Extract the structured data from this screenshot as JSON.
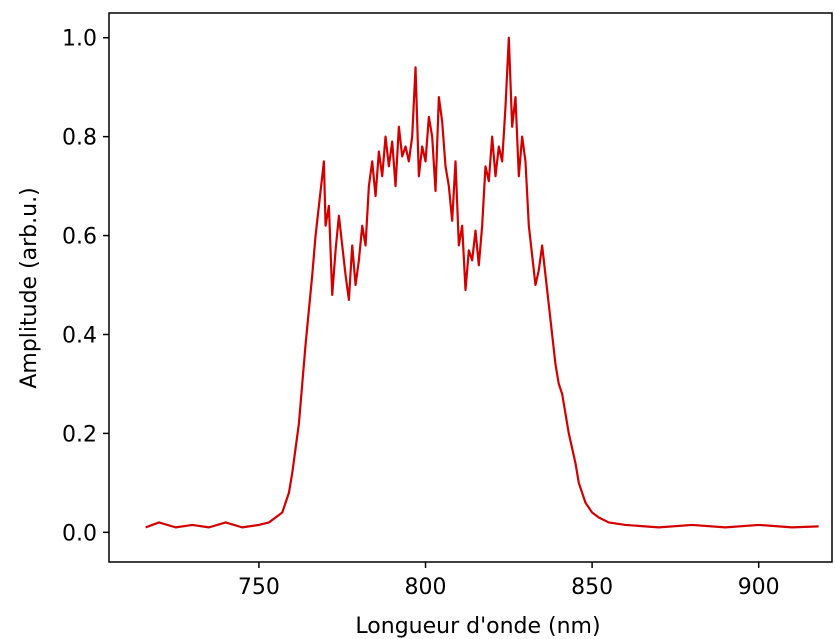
{
  "chart_data": {
    "type": "line",
    "title": "",
    "xlabel": "Longueur d'onde (nm)",
    "ylabel": "Amplitude (arb.u.)",
    "xlim": [
      705,
      922
    ],
    "ylim": [
      -0.06,
      1.05
    ],
    "xticks": [
      750,
      800,
      850,
      900
    ],
    "xtick_labels": [
      "750",
      "800",
      "850",
      "900"
    ],
    "yticks": [
      0.0,
      0.2,
      0.4,
      0.6,
      0.8,
      1.0
    ],
    "ytick_labels": [
      "0.0",
      "0.2",
      "0.4",
      "0.6",
      "0.8",
      "1.0"
    ],
    "grid": false,
    "series": [
      {
        "color": "#d40000",
        "x": [
          716,
          720,
          725,
          730,
          735,
          740,
          745,
          750,
          753,
          755,
          757,
          758,
          759,
          760,
          761,
          762,
          763,
          764,
          765,
          766,
          767,
          768,
          769,
          769.5,
          770,
          771,
          772,
          773,
          774,
          775,
          776,
          777,
          778,
          779,
          780,
          781,
          782,
          783,
          784,
          785,
          786,
          787,
          788,
          789,
          790,
          791,
          792,
          793,
          794,
          795,
          796,
          797,
          798,
          799,
          800,
          801,
          802,
          803,
          804,
          805,
          806,
          807,
          808,
          809,
          810,
          811,
          812,
          813,
          814,
          815,
          816,
          817,
          818,
          819,
          820,
          821,
          822,
          823,
          824,
          825,
          826,
          827,
          828,
          829,
          830,
          831,
          832,
          833,
          834,
          835,
          836,
          837,
          838,
          839,
          840,
          841,
          842,
          843,
          844,
          845,
          846,
          847,
          848,
          850,
          852,
          855,
          860,
          870,
          880,
          890,
          900,
          910,
          918
        ],
        "y": [
          0.01,
          0.02,
          0.01,
          0.015,
          0.01,
          0.02,
          0.01,
          0.015,
          0.02,
          0.03,
          0.04,
          0.06,
          0.08,
          0.12,
          0.17,
          0.22,
          0.3,
          0.38,
          0.45,
          0.52,
          0.6,
          0.66,
          0.72,
          0.75,
          0.62,
          0.66,
          0.48,
          0.57,
          0.64,
          0.58,
          0.52,
          0.47,
          0.58,
          0.5,
          0.55,
          0.62,
          0.58,
          0.7,
          0.75,
          0.68,
          0.77,
          0.72,
          0.8,
          0.74,
          0.79,
          0.7,
          0.82,
          0.76,
          0.78,
          0.75,
          0.8,
          0.94,
          0.72,
          0.78,
          0.75,
          0.84,
          0.8,
          0.69,
          0.88,
          0.83,
          0.74,
          0.7,
          0.63,
          0.75,
          0.58,
          0.62,
          0.49,
          0.57,
          0.55,
          0.61,
          0.54,
          0.62,
          0.74,
          0.71,
          0.8,
          0.72,
          0.78,
          0.75,
          0.86,
          1.0,
          0.82,
          0.88,
          0.72,
          0.8,
          0.75,
          0.62,
          0.56,
          0.5,
          0.53,
          0.58,
          0.52,
          0.46,
          0.4,
          0.34,
          0.3,
          0.28,
          0.24,
          0.2,
          0.17,
          0.14,
          0.1,
          0.08,
          0.06,
          0.04,
          0.03,
          0.02,
          0.015,
          0.01,
          0.015,
          0.01,
          0.015,
          0.01,
          0.012
        ]
      }
    ]
  }
}
